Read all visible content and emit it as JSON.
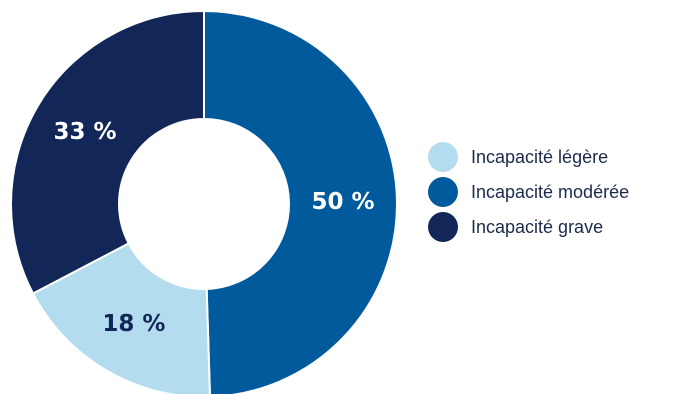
{
  "chart_data": {
    "type": "pie",
    "title": "",
    "categories": [
      "Incapacité légère",
      "Incapacité modérée",
      "Incapacité grave"
    ],
    "values": [
      18,
      50,
      33
    ],
    "value_labels": [
      "18 %",
      "50 %",
      "33 %"
    ],
    "colors": [
      "#b3dcef",
      "#005a9c",
      "#122757"
    ],
    "label_colors": [
      "#122757",
      "#ffffff",
      "#ffffff"
    ],
    "donut": true,
    "legend_position": "right"
  },
  "legend": {
    "items": [
      {
        "label": "Incapacité légère",
        "color": "#b3dcef"
      },
      {
        "label": "Incapacité modérée",
        "color": "#005a9c"
      },
      {
        "label": "Incapacité grave",
        "color": "#122757"
      }
    ]
  }
}
